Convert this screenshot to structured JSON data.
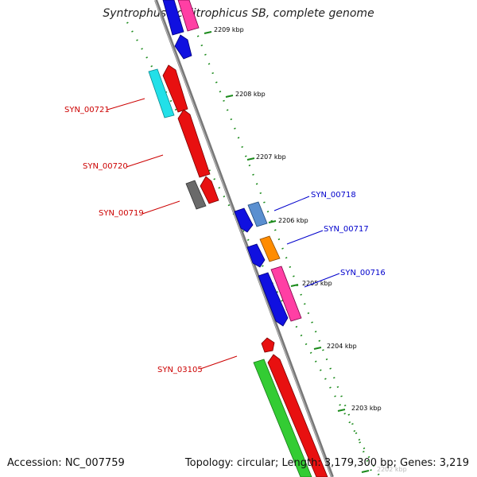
{
  "title": "Syntrophus aciditrophicus SB, complete genome",
  "footer": {
    "accession": "Accession: NC_007759",
    "summary": "Topology: circular; Length: 3,179,300 bp; Genes: 3,219"
  },
  "ticks": [
    "2209 kbp",
    "2208 kbp",
    "2207 kbp",
    "2206 kbp",
    "2205 kbp",
    "2204 kbp",
    "2203 kbp",
    "2202 kbp"
  ],
  "gene_labels": {
    "reverse": [
      "SYN_00721",
      "SYN_00720",
      "SYN_00719",
      "SYN_03105"
    ],
    "forward": [
      "SYN_00718",
      "SYN_00717",
      "SYN_00716"
    ]
  },
  "colors": {
    "forward_label": "#0000cc",
    "reverse_label": "#cc0000",
    "dots": "#1a8a1a",
    "backbone": "#7a7a7a"
  }
}
